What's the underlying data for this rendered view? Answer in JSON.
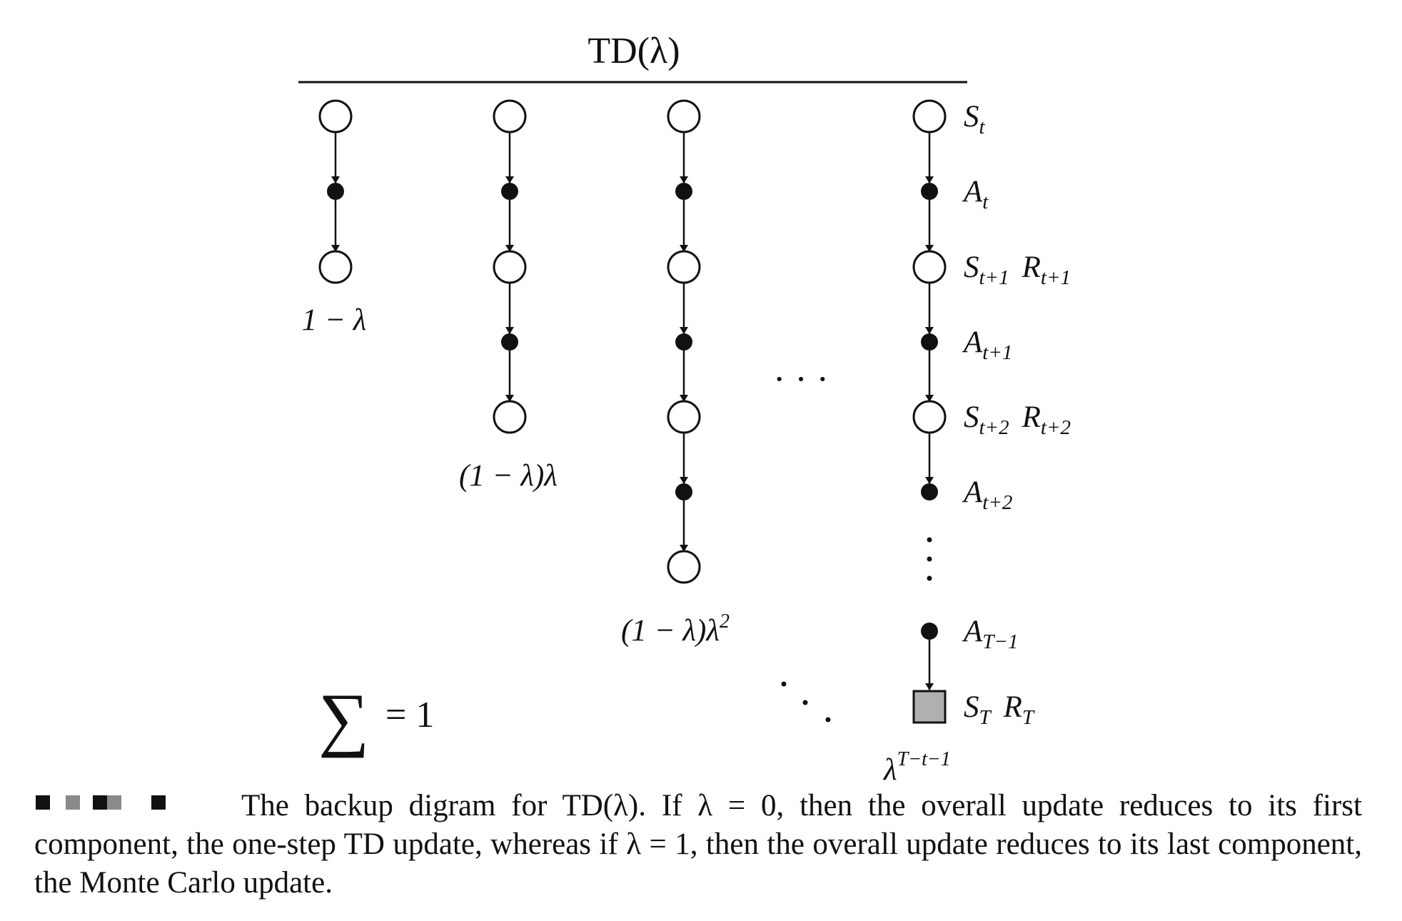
{
  "title": "TD(λ)",
  "columns": [
    {
      "weight_label": "1 − λ"
    },
    {
      "weight_label": "(1 − λ)λ"
    },
    {
      "weight_label": "(1 − λ)λ",
      "weight_exp": "2"
    },
    {
      "weight_label": "λ",
      "weight_exp": "T−t−1"
    }
  ],
  "ellipsis": "· · ·",
  "labels": {
    "s_t": {
      "base": "S",
      "sub": "t"
    },
    "a_t": {
      "base": "A",
      "sub": "t"
    },
    "s_t1": {
      "base": "S",
      "sub": "t+1",
      "base2": "R",
      "sub2": "t+1"
    },
    "a_t1": {
      "base": "A",
      "sub": "t+1"
    },
    "s_t2": {
      "base": "S",
      "sub": "t+2",
      "base2": "R",
      "sub2": "t+2"
    },
    "a_t2": {
      "base": "A",
      "sub": "t+2"
    },
    "a_T1": {
      "base": "A",
      "sub": "T−1"
    },
    "s_T": {
      "base": "S",
      "sub": "T",
      "base2": "R",
      "sub2": "T"
    }
  },
  "sum": {
    "symbol": "∑",
    "text": "= 1"
  },
  "caption": {
    "line1": "The backup digram for TD(λ). If λ = 0, then the overall update reduces to its first component, the one-step TD update, whereas if λ = 1, then the overall update reduces to its last component, the Monte Carlo update."
  },
  "colors": {
    "terminal_fill": "#b0b0b0",
    "mark_dark": "#111111",
    "mark_gray": "#8a8a8a"
  }
}
